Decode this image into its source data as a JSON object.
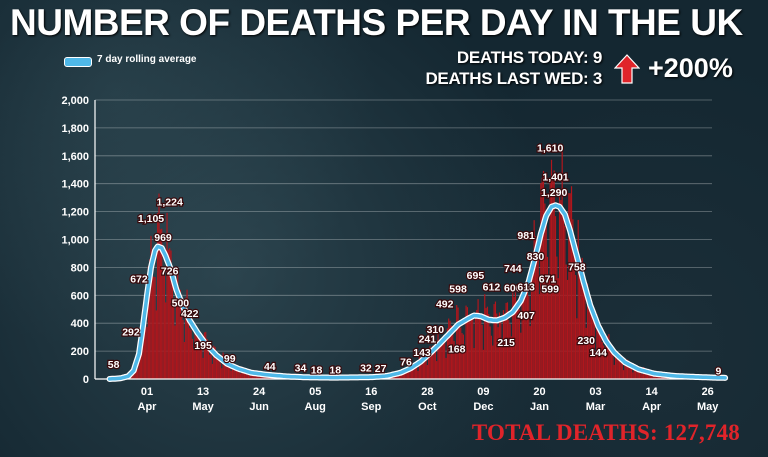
{
  "title": "NUMBER OF DEATHS PER DAY IN THE UK",
  "stats": {
    "today_label": "DEATHS TODAY: 9",
    "last_wed_label": "DEATHS LAST WED: 3",
    "change_pct": "+200%",
    "total": "TOTAL DEATHS: 127,748"
  },
  "colors": {
    "bars": "#b0161c",
    "line": "#4fb8e8",
    "total": "#e0242a",
    "arrow": "#e0242a"
  },
  "chart_data": {
    "type": "bar",
    "legend": [
      "7 day rolling average"
    ],
    "legend_position": "top-left",
    "grid": true,
    "ylim": [
      0,
      2000
    ],
    "y_ticks": [
      "0",
      "200",
      "400",
      "600",
      "800",
      "1,000",
      "1,200",
      "1,400",
      "1,600",
      "1,800",
      "2,000"
    ],
    "x_ticks": [
      {
        "day": "01",
        "month": "Apr"
      },
      {
        "day": "13",
        "month": "May"
      },
      {
        "day": "24",
        "month": "Jun"
      },
      {
        "day": "05",
        "month": "Aug"
      },
      {
        "day": "16",
        "month": "Sep"
      },
      {
        "day": "28",
        "month": "Oct"
      },
      {
        "day": "09",
        "month": "Dec"
      },
      {
        "day": "20",
        "month": "Jan"
      },
      {
        "day": "03",
        "month": "Mar"
      },
      {
        "day": "14",
        "month": "Apr"
      },
      {
        "day": "26",
        "month": "May"
      }
    ],
    "x_tick_positions": [
      0,
      42,
      84,
      126,
      168,
      210,
      252,
      294,
      336,
      378,
      420
    ],
    "bar_count": 440,
    "series": [
      {
        "name": "7 day rolling average",
        "curve_points": [
          [
            -28,
            0
          ],
          [
            -20,
            5
          ],
          [
            -14,
            20
          ],
          [
            -10,
            60
          ],
          [
            -6,
            180
          ],
          [
            -3,
            380
          ],
          [
            0,
            600
          ],
          [
            3,
            800
          ],
          [
            6,
            920
          ],
          [
            8,
            950
          ],
          [
            11,
            940
          ],
          [
            14,
            880
          ],
          [
            18,
            780
          ],
          [
            22,
            640
          ],
          [
            27,
            520
          ],
          [
            32,
            420
          ],
          [
            38,
            330
          ],
          [
            44,
            250
          ],
          [
            52,
            170
          ],
          [
            60,
            110
          ],
          [
            68,
            75
          ],
          [
            78,
            45
          ],
          [
            90,
            30
          ],
          [
            105,
            18
          ],
          [
            120,
            12
          ],
          [
            140,
            10
          ],
          [
            160,
            12
          ],
          [
            170,
            14
          ],
          [
            180,
            22
          ],
          [
            190,
            45
          ],
          [
            198,
            80
          ],
          [
            205,
            125
          ],
          [
            212,
            185
          ],
          [
            219,
            250
          ],
          [
            226,
            320
          ],
          [
            233,
            390
          ],
          [
            240,
            430
          ],
          [
            245,
            455
          ],
          [
            250,
            450
          ],
          [
            256,
            425
          ],
          [
            262,
            420
          ],
          [
            268,
            440
          ],
          [
            274,
            480
          ],
          [
            280,
            560
          ],
          [
            286,
            700
          ],
          [
            291,
            880
          ],
          [
            295,
            1040
          ],
          [
            299,
            1170
          ],
          [
            303,
            1235
          ],
          [
            306,
            1245
          ],
          [
            309,
            1235
          ],
          [
            313,
            1180
          ],
          [
            317,
            1060
          ],
          [
            322,
            880
          ],
          [
            327,
            700
          ],
          [
            332,
            530
          ],
          [
            338,
            380
          ],
          [
            344,
            270
          ],
          [
            350,
            190
          ],
          [
            358,
            120
          ],
          [
            368,
            70
          ],
          [
            380,
            38
          ],
          [
            395,
            22
          ],
          [
            410,
            15
          ],
          [
            425,
            10
          ],
          [
            433,
            8
          ]
        ]
      }
    ],
    "annotations": [
      {
        "x": -25,
        "y": 58,
        "label": "58"
      },
      {
        "x": -12,
        "y": 292,
        "label": "292"
      },
      {
        "x": -6,
        "y": 672,
        "label": "672"
      },
      {
        "x": 3,
        "y": 1105,
        "label": "1,105"
      },
      {
        "x": 17,
        "y": 1224,
        "label": "1,224"
      },
      {
        "x": 12,
        "y": 969,
        "label": "969"
      },
      {
        "x": 17,
        "y": 726,
        "label": "726"
      },
      {
        "x": 25,
        "y": 500,
        "label": "500"
      },
      {
        "x": 32,
        "y": 422,
        "label": "422"
      },
      {
        "x": 42,
        "y": 195,
        "label": "195"
      },
      {
        "x": 62,
        "y": 99,
        "label": "99"
      },
      {
        "x": 92,
        "y": 44,
        "label": "44"
      },
      {
        "x": 115,
        "y": 34,
        "label": "34"
      },
      {
        "x": 127,
        "y": 18,
        "label": "18"
      },
      {
        "x": 141,
        "y": 18,
        "label": "18"
      },
      {
        "x": 164,
        "y": 32,
        "label": "32"
      },
      {
        "x": 175,
        "y": 27,
        "label": "27"
      },
      {
        "x": 194,
        "y": 76,
        "label": "76"
      },
      {
        "x": 206,
        "y": 143,
        "label": "143"
      },
      {
        "x": 210,
        "y": 241,
        "label": "241"
      },
      {
        "x": 216,
        "y": 310,
        "label": "310"
      },
      {
        "x": 223,
        "y": 492,
        "label": "492"
      },
      {
        "x": 233,
        "y": 598,
        "label": "598"
      },
      {
        "x": 232,
        "y": 168,
        "label": "168"
      },
      {
        "x": 246,
        "y": 695,
        "label": "695"
      },
      {
        "x": 258,
        "y": 612,
        "label": "612"
      },
      {
        "x": 269,
        "y": 215,
        "label": "215"
      },
      {
        "x": 274,
        "y": 744,
        "label": "744"
      },
      {
        "x": 274,
        "y": 606,
        "label": "606"
      },
      {
        "x": 284,
        "y": 613,
        "label": "613"
      },
      {
        "x": 284,
        "y": 407,
        "label": "407"
      },
      {
        "x": 291,
        "y": 830,
        "label": "830"
      },
      {
        "x": 284,
        "y": 981,
        "label": "981"
      },
      {
        "x": 302,
        "y": 1610,
        "label": "1,610"
      },
      {
        "x": 306,
        "y": 1401,
        "label": "1,401"
      },
      {
        "x": 305,
        "y": 1290,
        "label": "1,290"
      },
      {
        "x": 300,
        "y": 671,
        "label": "671"
      },
      {
        "x": 302,
        "y": 599,
        "label": "599"
      },
      {
        "x": 322,
        "y": 758,
        "label": "758"
      },
      {
        "x": 329,
        "y": 230,
        "label": "230"
      },
      {
        "x": 338,
        "y": 144,
        "label": "144"
      },
      {
        "x": 428,
        "y": 9,
        "label": "9"
      }
    ]
  }
}
